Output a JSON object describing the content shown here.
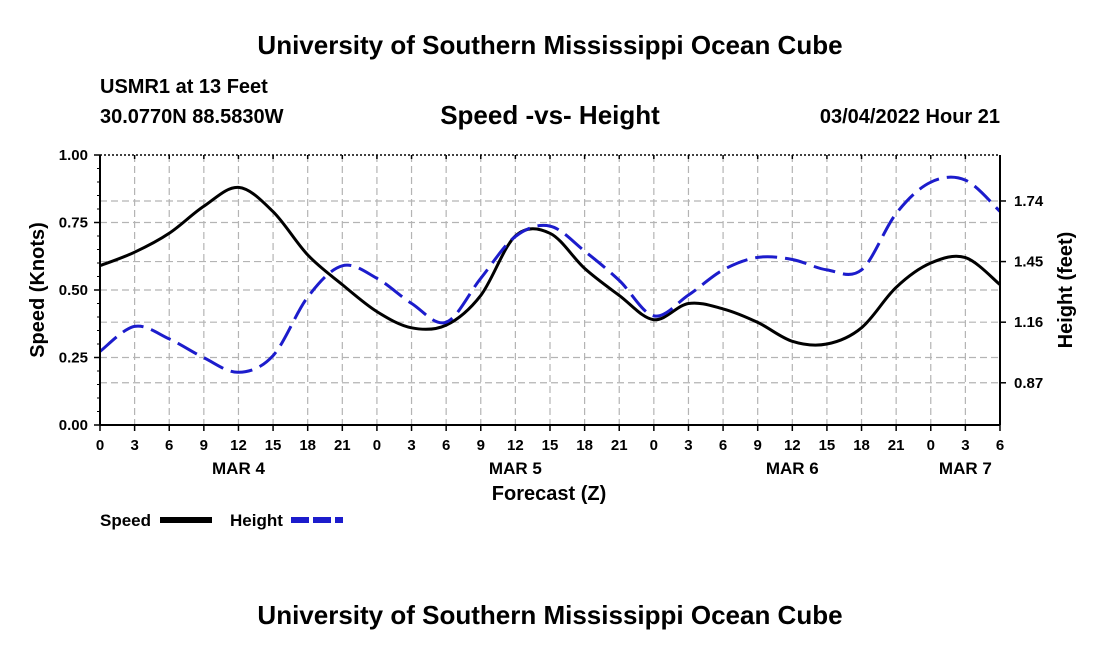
{
  "header": {
    "title": "University of Southern Mississippi Ocean Cube",
    "station": "USMR1 at 13 Feet",
    "coords": "30.0770N  88.5830W",
    "chart_title": "Speed -vs- Height",
    "timestamp": "03/04/2022 Hour 21"
  },
  "footer": {
    "title": "University of Southern Mississippi Ocean Cube"
  },
  "legend": {
    "speed_label": "Speed",
    "height_label": "Height"
  },
  "colors": {
    "speed": "#000000",
    "height": "#1c1ccc",
    "grid": "#b4b4b4"
  },
  "chart_data": {
    "type": "line",
    "title": "Speed -vs- Height",
    "xlabel": "Forecast (Z)",
    "ylabel": "Speed (Knots)",
    "y2label": "Height (feet)",
    "xlim": [
      0,
      78
    ],
    "ylim": [
      0,
      1
    ],
    "y2lim": [
      0.668,
      1.96
    ],
    "x_ticks": [
      0,
      3,
      6,
      9,
      12,
      15,
      18,
      21,
      24,
      27,
      30,
      33,
      36,
      39,
      42,
      45,
      48,
      51,
      54,
      57,
      60,
      63,
      66,
      69,
      72,
      75,
      78
    ],
    "x_tick_labels": [
      "0",
      "3",
      "6",
      "9",
      "12",
      "15",
      "18",
      "21",
      "0",
      "3",
      "6",
      "9",
      "12",
      "15",
      "18",
      "21",
      "0",
      "3",
      "6",
      "9",
      "12",
      "15",
      "18",
      "21",
      "0",
      "3",
      "6"
    ],
    "date_labels": [
      {
        "x": 12,
        "label": "MAR 4"
      },
      {
        "x": 36,
        "label": "MAR 5"
      },
      {
        "x": 60,
        "label": "MAR 6"
      },
      {
        "x": 75,
        "label": "MAR 7"
      }
    ],
    "y_ticks": [
      0.0,
      0.25,
      0.5,
      0.75,
      1.0
    ],
    "y_tick_labels": [
      "0.00",
      "0.25",
      "0.50",
      "0.75",
      "1.00"
    ],
    "y2_ticks": [
      0.87,
      1.16,
      1.45,
      1.74
    ],
    "y2_tick_labels": [
      "0.87",
      "1.16",
      "1.45",
      "1.74"
    ],
    "series": [
      {
        "name": "Speed",
        "axis": "left",
        "style": "solid",
        "x": [
          0,
          3,
          6,
          9,
          12,
          15,
          18,
          21,
          24,
          27,
          30,
          33,
          36,
          39,
          42,
          45,
          48,
          51,
          54,
          57,
          60,
          63,
          66,
          69,
          72,
          75,
          78
        ],
        "values": [
          0.59,
          0.64,
          0.71,
          0.81,
          0.88,
          0.79,
          0.63,
          0.52,
          0.42,
          0.36,
          0.37,
          0.48,
          0.7,
          0.71,
          0.58,
          0.48,
          0.39,
          0.45,
          0.43,
          0.38,
          0.31,
          0.3,
          0.36,
          0.51,
          0.6,
          0.62,
          0.52
        ]
      },
      {
        "name": "Height",
        "axis": "right",
        "style": "dashed",
        "x": [
          0,
          3,
          6,
          9,
          12,
          15,
          18,
          21,
          24,
          27,
          30,
          33,
          36,
          39,
          42,
          45,
          48,
          51,
          54,
          57,
          60,
          63,
          66,
          69,
          72,
          75,
          78
        ],
        "values": [
          1.02,
          1.14,
          1.08,
          0.99,
          0.92,
          1.0,
          1.28,
          1.43,
          1.37,
          1.25,
          1.16,
          1.37,
          1.57,
          1.62,
          1.5,
          1.36,
          1.19,
          1.29,
          1.41,
          1.47,
          1.46,
          1.41,
          1.41,
          1.68,
          1.83,
          1.84,
          1.69
        ]
      }
    ]
  }
}
